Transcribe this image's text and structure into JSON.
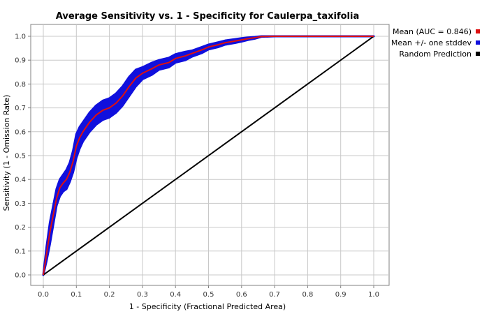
{
  "chart_data": {
    "type": "line",
    "title": "Average Sensitivity vs. 1 - Specificity for Caulerpa_taxifolia",
    "xlabel": "1 - Specificity (Fractional Predicted Area)",
    "ylabel": "Sensitivity (1 - Omission Rate)",
    "xlim": [
      0,
      1
    ],
    "ylim": [
      0,
      1
    ],
    "x_ticks": [
      "0.0",
      "0.1",
      "0.2",
      "0.3",
      "0.4",
      "0.5",
      "0.6",
      "0.7",
      "0.8",
      "0.9",
      "1.0"
    ],
    "y_ticks": [
      "0.0",
      "0.1",
      "0.2",
      "0.3",
      "0.4",
      "0.5",
      "0.6",
      "0.7",
      "0.8",
      "0.9",
      "1.0"
    ],
    "grid": true,
    "legend_position": "right",
    "series": [
      {
        "name": "Mean +/- one stddev",
        "color": "#1010dd",
        "kind": "band",
        "x": [
          0.0,
          0.01,
          0.02,
          0.03,
          0.04,
          0.05,
          0.06,
          0.07,
          0.08,
          0.09,
          0.1,
          0.11,
          0.12,
          0.14,
          0.16,
          0.18,
          0.2,
          0.22,
          0.24,
          0.26,
          0.28,
          0.3,
          0.33,
          0.35,
          0.38,
          0.4,
          0.43,
          0.45,
          0.48,
          0.5,
          0.53,
          0.55,
          0.58,
          0.6,
          0.62,
          0.64,
          0.66,
          0.7,
          0.8,
          0.9,
          1.0
        ],
        "upper": [
          0.0,
          0.12,
          0.22,
          0.29,
          0.36,
          0.4,
          0.42,
          0.44,
          0.47,
          0.52,
          0.59,
          0.62,
          0.64,
          0.68,
          0.71,
          0.73,
          0.74,
          0.76,
          0.79,
          0.83,
          0.86,
          0.87,
          0.89,
          0.9,
          0.91,
          0.925,
          0.935,
          0.94,
          0.955,
          0.965,
          0.975,
          0.982,
          0.988,
          0.992,
          0.995,
          0.997,
          1.0,
          1.0,
          1.0,
          1.0,
          1.0
        ],
        "lower": [
          0.0,
          0.06,
          0.13,
          0.21,
          0.29,
          0.33,
          0.35,
          0.36,
          0.39,
          0.43,
          0.49,
          0.53,
          0.56,
          0.6,
          0.63,
          0.65,
          0.66,
          0.68,
          0.71,
          0.75,
          0.79,
          0.82,
          0.84,
          0.86,
          0.87,
          0.89,
          0.9,
          0.915,
          0.93,
          0.945,
          0.955,
          0.965,
          0.972,
          0.978,
          0.985,
          0.99,
          0.998,
          1.0,
          1.0,
          1.0,
          1.0
        ]
      },
      {
        "name": "Mean (AUC = 0.846)",
        "color": "#dd1010",
        "kind": "line",
        "x": [
          0.0,
          0.01,
          0.02,
          0.03,
          0.04,
          0.05,
          0.06,
          0.07,
          0.08,
          0.09,
          0.1,
          0.11,
          0.12,
          0.14,
          0.16,
          0.18,
          0.2,
          0.22,
          0.24,
          0.26,
          0.28,
          0.3,
          0.33,
          0.35,
          0.38,
          0.4,
          0.43,
          0.45,
          0.48,
          0.5,
          0.53,
          0.55,
          0.58,
          0.6,
          0.62,
          0.64,
          0.66,
          0.7,
          0.8,
          0.9,
          1.0
        ],
        "y": [
          0.0,
          0.09,
          0.18,
          0.25,
          0.32,
          0.365,
          0.385,
          0.4,
          0.43,
          0.475,
          0.54,
          0.575,
          0.6,
          0.64,
          0.67,
          0.69,
          0.7,
          0.72,
          0.75,
          0.79,
          0.825,
          0.845,
          0.865,
          0.88,
          0.89,
          0.907,
          0.918,
          0.928,
          0.943,
          0.955,
          0.965,
          0.973,
          0.98,
          0.985,
          0.99,
          0.994,
          0.999,
          1.0,
          1.0,
          1.0,
          1.0
        ]
      },
      {
        "name": "Random Prediction",
        "color": "#000000",
        "kind": "line",
        "x": [
          0.0,
          1.0
        ],
        "y": [
          0.0,
          1.0
        ]
      }
    ]
  }
}
